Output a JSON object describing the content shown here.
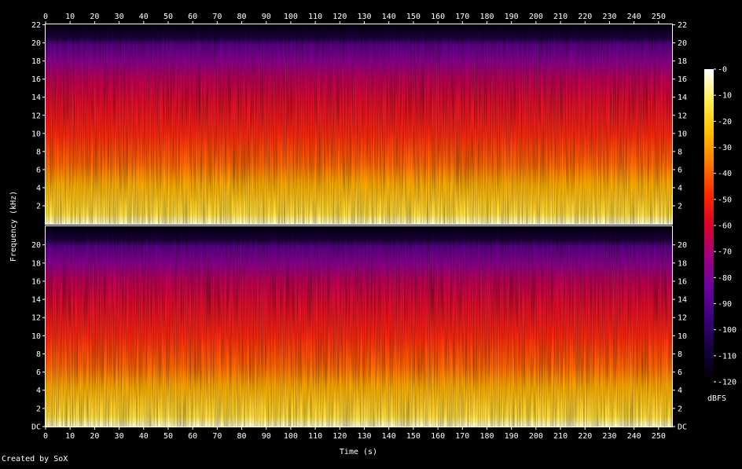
{
  "chart_data": {
    "type": "heatmap",
    "xlabel": "Time (s)",
    "ylabel": "Frequency (kHz)",
    "x_ticks": [
      0,
      10,
      20,
      30,
      40,
      50,
      60,
      70,
      80,
      90,
      100,
      110,
      120,
      130,
      140,
      150,
      160,
      170,
      180,
      190,
      200,
      210,
      220,
      230,
      240,
      250
    ],
    "x_range": [
      0,
      255.5
    ],
    "y_ticks_top": [
      "2",
      "4",
      "6",
      "8",
      "10",
      "12",
      "14",
      "16",
      "18",
      "20",
      "22"
    ],
    "y_ticks_bottom": [
      "DC",
      "2",
      "4",
      "6",
      "8",
      "10",
      "12",
      "14",
      "16",
      "18",
      "20"
    ],
    "y_range_khz": [
      0,
      22.05
    ],
    "channels": 2,
    "colorbar": {
      "label": "dBFS",
      "ticks": [
        "-0",
        "-10",
        "-20",
        "-30",
        "-40",
        "-50",
        "-60",
        "-70",
        "-80",
        "-90",
        "-100",
        "-110",
        "-120"
      ],
      "range": [
        -120,
        0
      ]
    },
    "colors": {
      "stops": [
        "#000000",
        "#14003a",
        "#3a007a",
        "#6a00a0",
        "#a00080",
        "#d8002a",
        "#ff2a00",
        "#ff7a00",
        "#ffc000",
        "#ffee50",
        "#ffffff"
      ]
    }
  },
  "footer": {
    "credit": "Created by SoX"
  }
}
